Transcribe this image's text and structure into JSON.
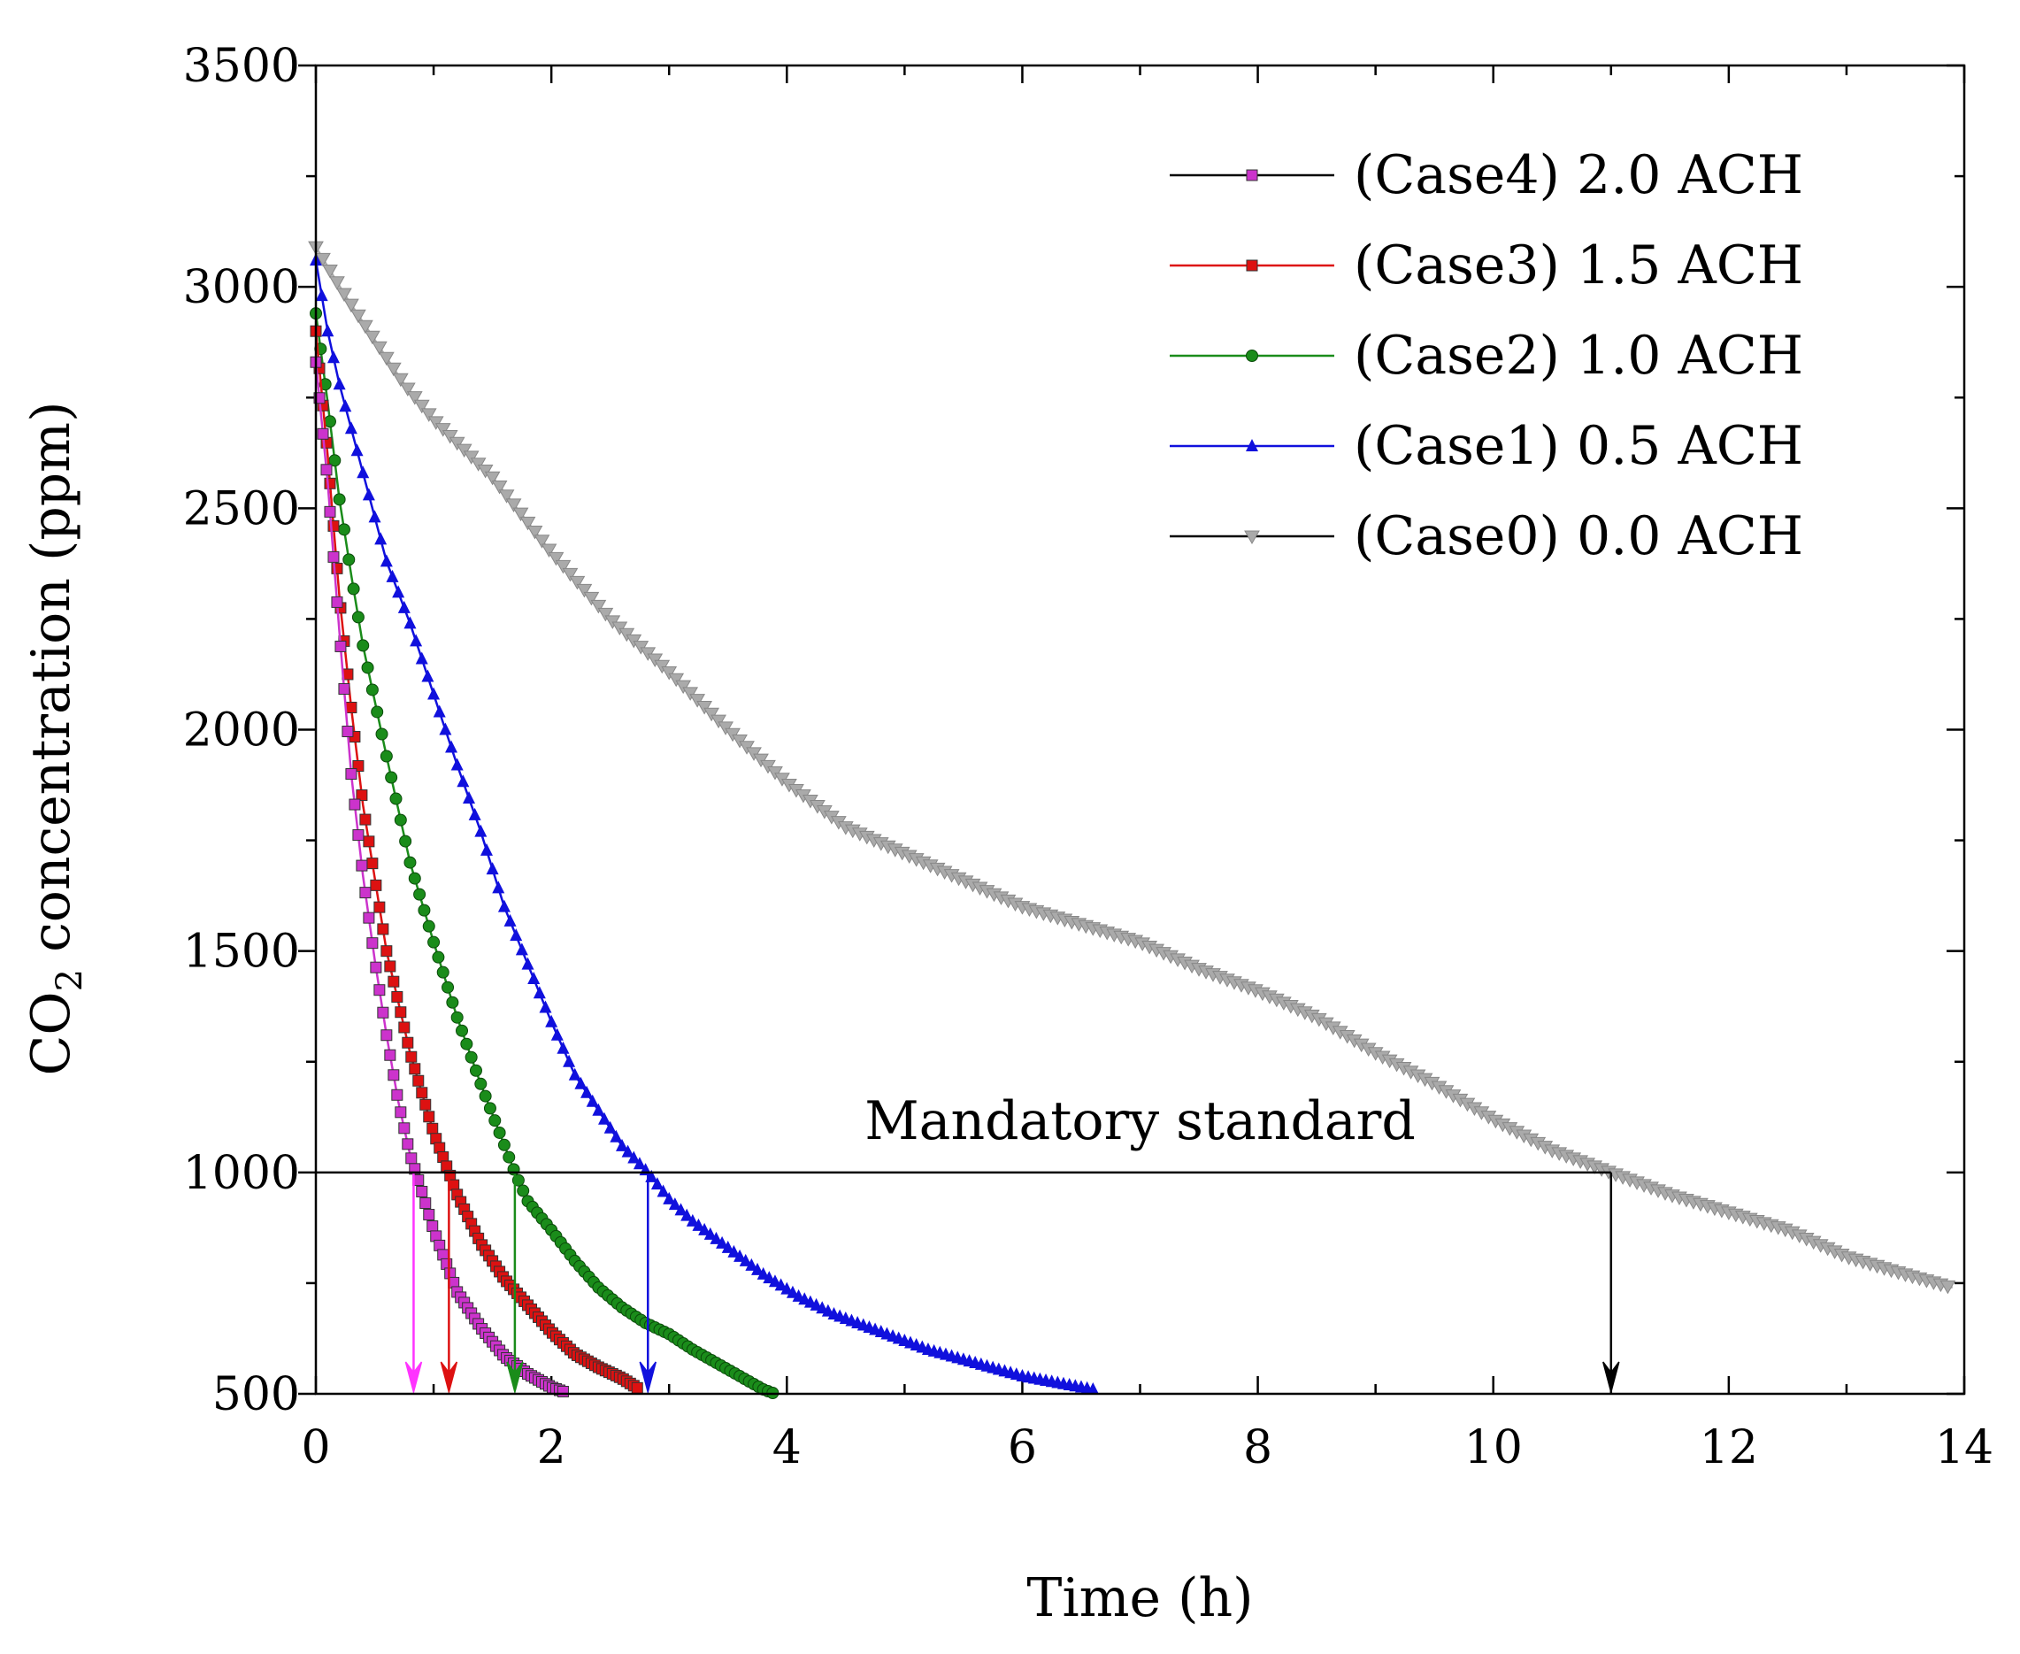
{
  "chart_data": {
    "type": "line",
    "title": "",
    "xlabel": "Time (h)",
    "ylabel": {
      "prefix": "CO",
      "subscript": "2",
      "suffix": " concentration (ppm)"
    },
    "xlim": [
      0,
      14
    ],
    "ylim": [
      500,
      3500
    ],
    "xticks": [
      "0",
      "2",
      "4",
      "6",
      "8",
      "10",
      "12",
      "14"
    ],
    "yticks": [
      "500",
      "1000",
      "1500",
      "2000",
      "2500",
      "3000",
      "3500"
    ],
    "legend_position": "top-right",
    "annotation": {
      "text": "Mandatory standard",
      "y": 1000,
      "x_start": 0,
      "x_end": 11.0
    },
    "series": [
      {
        "name": "(Case4) 2.0 ACH",
        "color": "#cc33cc",
        "legend_line_color": "#000000",
        "marker": "square",
        "x": [
          0.0,
          0.1,
          0.2,
          0.3,
          0.4,
          0.5,
          0.6,
          0.7,
          0.8,
          0.85,
          1.0,
          1.2,
          1.4,
          1.6,
          1.8,
          2.0,
          2.1
        ],
        "y": [
          2830,
          2560,
          2220,
          1900,
          1670,
          1480,
          1310,
          1160,
          1040,
          1000,
          870,
          730,
          650,
          585,
          545,
          515,
          505
        ]
      },
      {
        "name": "(Case3) 1.5 ACH",
        "color": "#dd1111",
        "legend_line_color": "#dd1111",
        "marker": "square",
        "x": [
          0.0,
          0.1,
          0.2,
          0.3,
          0.4,
          0.6,
          0.8,
          1.0,
          1.13,
          1.2,
          1.4,
          1.6,
          1.8,
          2.0,
          2.2,
          2.4,
          2.6,
          2.75
        ],
        "y": [
          2900,
          2620,
          2300,
          2050,
          1830,
          1500,
          1270,
          1090,
          1000,
          950,
          840,
          760,
          700,
          640,
          590,
          560,
          535,
          510
        ]
      },
      {
        "name": "(Case2) 1.0 ACH",
        "color": "#1a8c1a",
        "legend_line_color": "#1a8c1a",
        "marker": "circle",
        "x": [
          0.0,
          0.1,
          0.2,
          0.3,
          0.4,
          0.6,
          0.8,
          1.0,
          1.2,
          1.4,
          1.69,
          1.8,
          2.0,
          2.2,
          2.4,
          2.6,
          2.8,
          3.0,
          3.2,
          3.4,
          3.6,
          3.8,
          3.9
        ],
        "y": [
          2940,
          2740,
          2520,
          2350,
          2190,
          1940,
          1700,
          1520,
          1350,
          1200,
          1000,
          935,
          870,
          800,
          740,
          695,
          660,
          635,
          600,
          570,
          540,
          510,
          500
        ]
      },
      {
        "name": "(Case1) 0.5 ACH",
        "color": "#1010dd",
        "legend_line_color": "#1010dd",
        "marker": "triangle-up",
        "x": [
          0.0,
          0.1,
          0.2,
          0.4,
          0.6,
          0.8,
          1.0,
          1.2,
          1.4,
          1.6,
          1.8,
          2.0,
          2.2,
          2.4,
          2.6,
          2.82,
          3.0,
          3.2,
          3.5,
          3.8,
          4.1,
          4.4,
          4.8,
          5.2,
          5.6,
          6.0,
          6.4,
          6.6
        ],
        "y": [
          3060,
          2900,
          2780,
          2580,
          2380,
          2240,
          2080,
          1920,
          1770,
          1600,
          1470,
          1340,
          1220,
          1140,
          1060,
          1000,
          940,
          890,
          830,
          770,
          720,
          680,
          640,
          600,
          570,
          540,
          520,
          510
        ]
      },
      {
        "name": "(Case0) 0.0 ACH",
        "color": "#aaaaaa",
        "legend_line_color": "#000000",
        "marker": "triangle-down",
        "x": [
          0.0,
          0.25,
          0.5,
          0.75,
          1.0,
          1.5,
          2.0,
          2.5,
          3.0,
          3.5,
          4.0,
          4.5,
          5.0,
          5.5,
          6.0,
          6.5,
          7.0,
          7.5,
          8.0,
          8.5,
          9.0,
          9.5,
          10.0,
          10.5,
          11.0,
          11.5,
          12.0,
          12.5,
          13.0,
          13.5,
          13.9
        ],
        "y": [
          3090,
          2980,
          2880,
          2780,
          2700,
          2570,
          2400,
          2250,
          2130,
          2000,
          1880,
          1780,
          1720,
          1660,
          1600,
          1560,
          1520,
          1460,
          1410,
          1350,
          1270,
          1200,
          1120,
          1050,
          1000,
          950,
          910,
          870,
          810,
          770,
          740
        ]
      }
    ],
    "arrows": [
      {
        "series": "(Case4) 2.0 ACH",
        "x": 0.83,
        "color": "#ff33ff"
      },
      {
        "series": "(Case3) 1.5 ACH",
        "x": 1.13,
        "color": "#dd1111"
      },
      {
        "series": "(Case2) 1.0 ACH",
        "x": 1.69,
        "color": "#1a8c1a"
      },
      {
        "series": "(Case1) 0.5 ACH",
        "x": 2.82,
        "color": "#1010dd"
      },
      {
        "series": "(Case0) 0.0 ACH",
        "x": 11.0,
        "color": "#000000"
      }
    ]
  }
}
